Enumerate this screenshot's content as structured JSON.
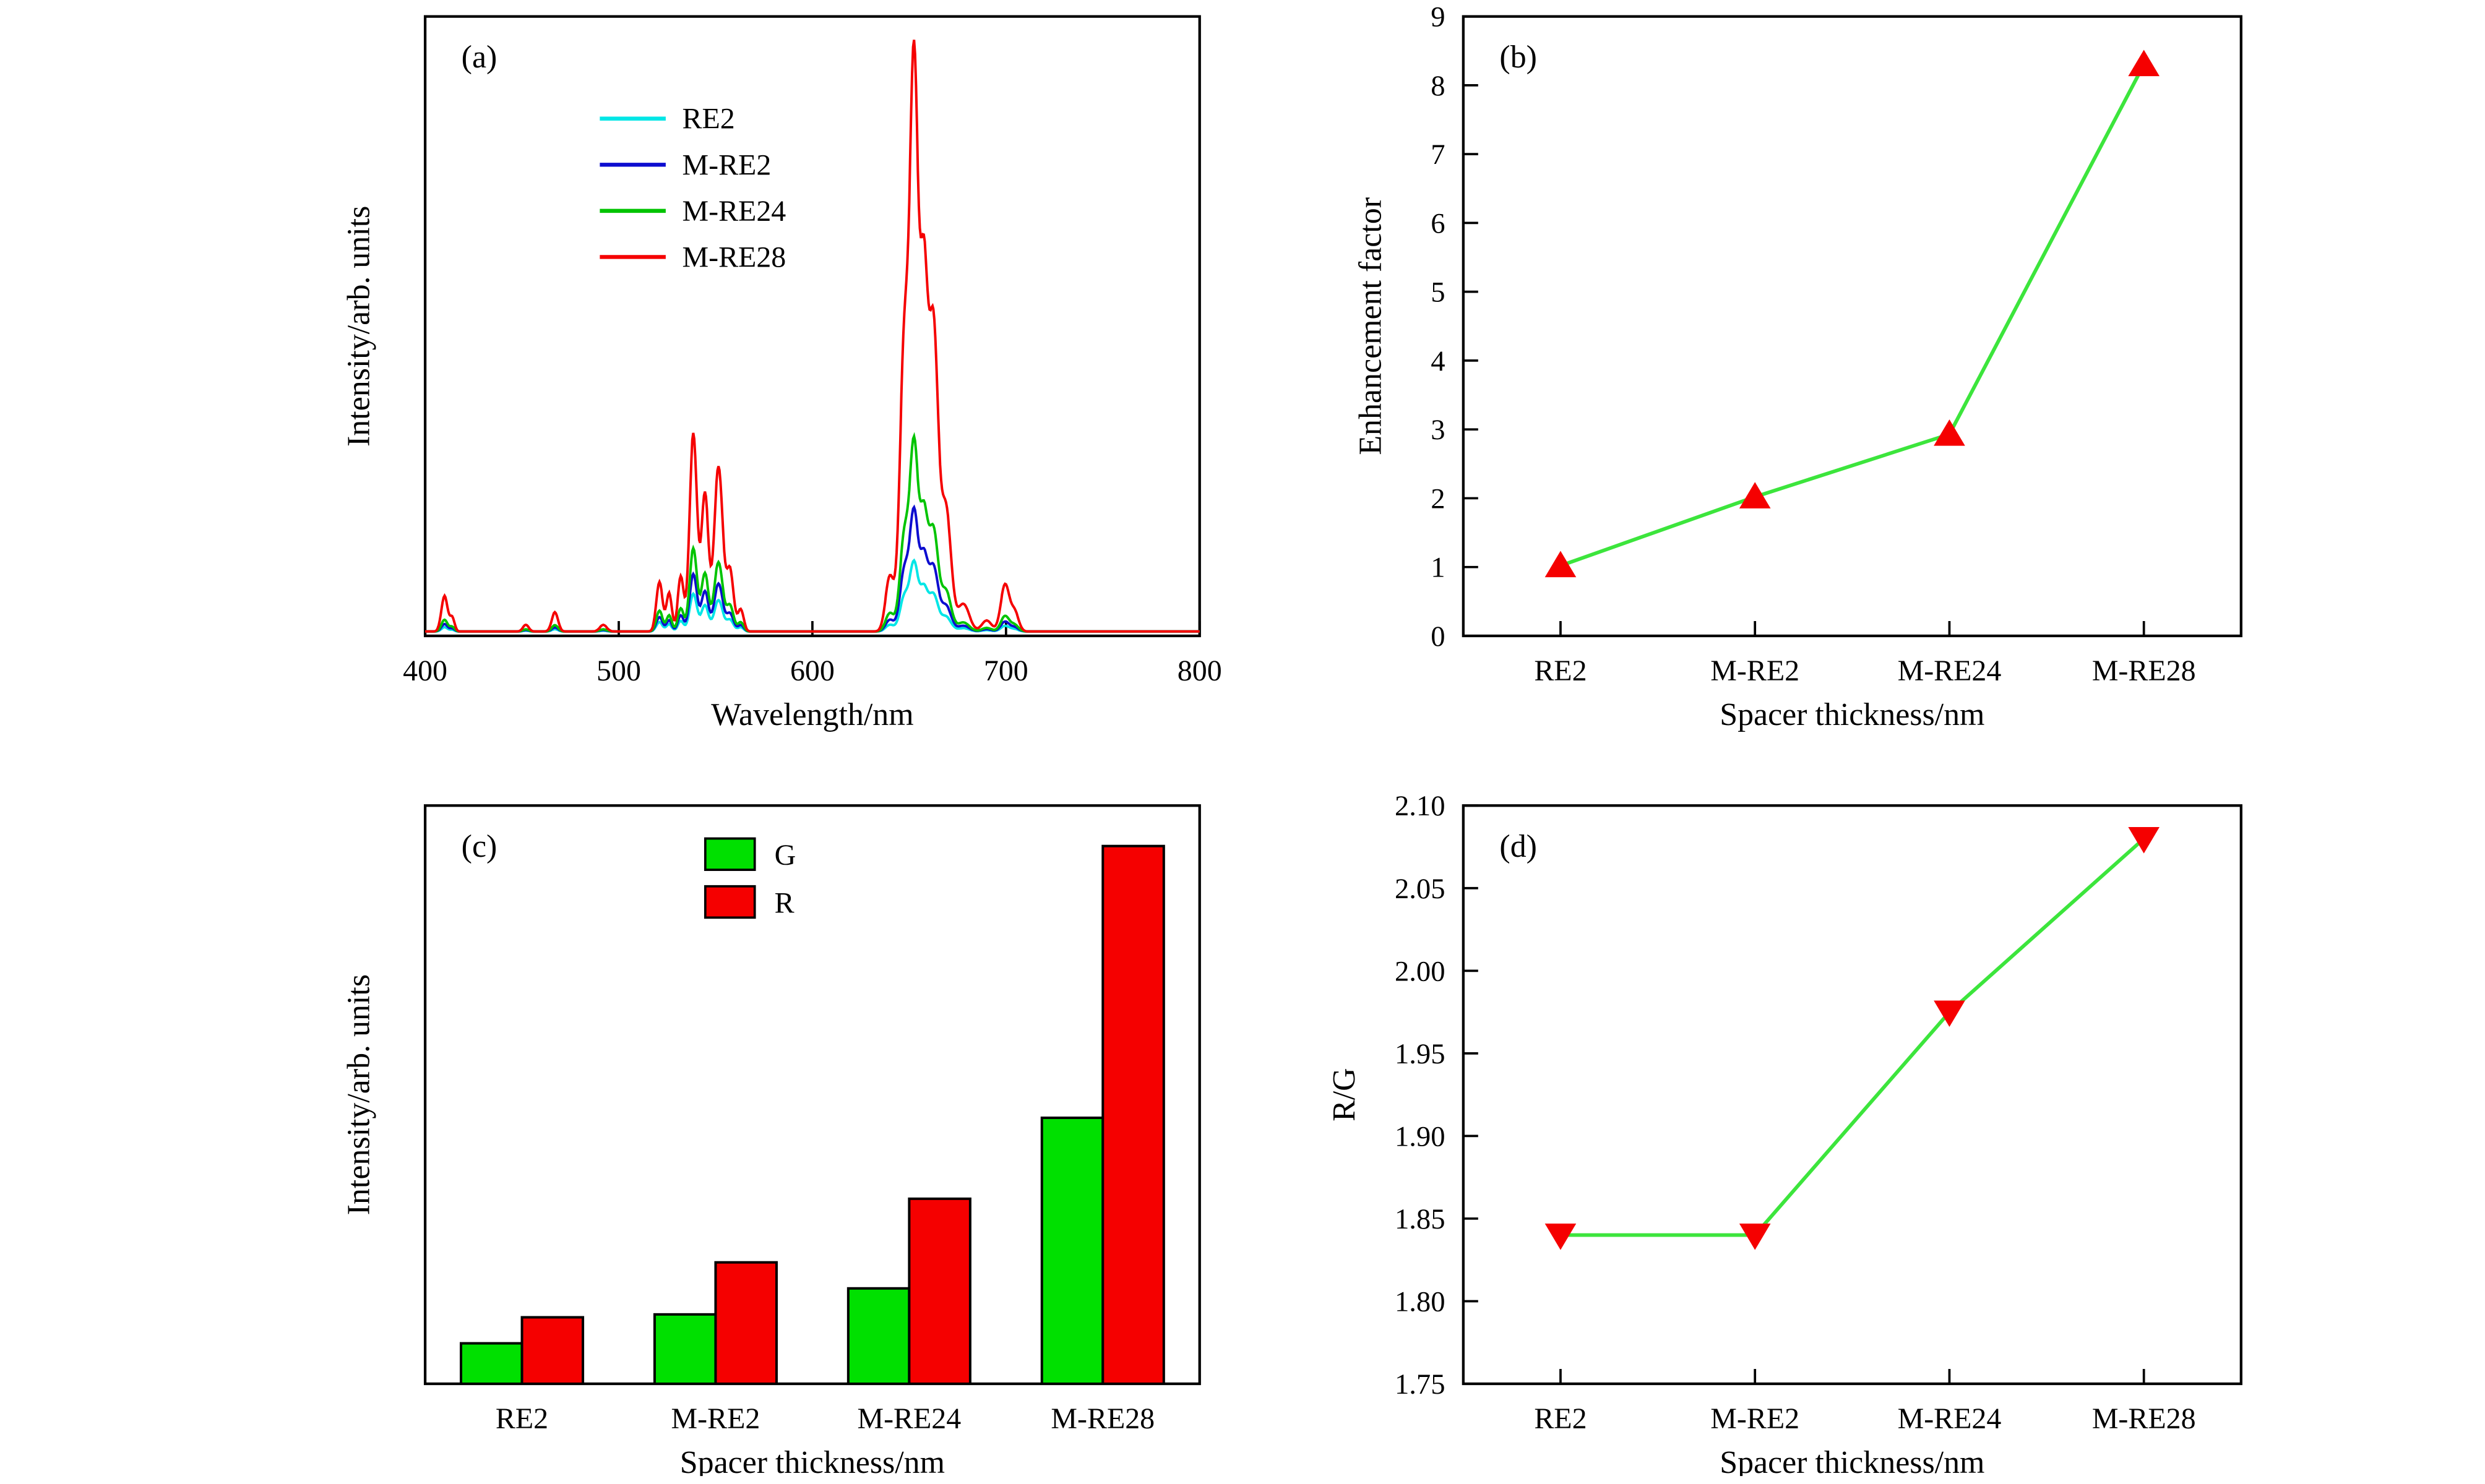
{
  "figure": {
    "background": "#ffffff",
    "description": "Four-panel luminescence figure"
  },
  "chart_data": [
    {
      "id": "a",
      "type": "line",
      "panel_label": "(a)",
      "xlabel": "Wavelength/nm",
      "ylabel": "Intensity/arb. units",
      "xlim": [
        400,
        800
      ],
      "xticks": [
        400,
        500,
        600,
        700,
        800
      ],
      "ylim": [
        0,
        1.12
      ],
      "baseline": 0.005,
      "legend_position": "upper-left-inside",
      "series": [
        {
          "name": "RE2",
          "color": "#00e6e6",
          "green_scale": 0.19,
          "red_scale": 0.12
        },
        {
          "name": "M-RE2",
          "color": "#0d0dcf",
          "green_scale": 0.29,
          "red_scale": 0.21
        },
        {
          "name": "M-RE24",
          "color": "#00c400",
          "green_scale": 0.42,
          "red_scale": 0.33
        },
        {
          "name": "M-RE28",
          "color": "#f50000",
          "green_scale": 1.0,
          "red_scale": 1.0
        }
      ],
      "peaks_green": [
        [
          521,
          1.6,
          0.09
        ],
        [
          526,
          1.4,
          0.07
        ],
        [
          532,
          1.5,
          0.1
        ],
        [
          538.5,
          1.9,
          0.36
        ],
        [
          544.5,
          1.8,
          0.25
        ],
        [
          551.5,
          2.2,
          0.3
        ],
        [
          557.5,
          1.8,
          0.11
        ],
        [
          563,
          1.5,
          0.04
        ]
      ],
      "peaks_red": [
        [
          410,
          1.6,
          0.065
        ],
        [
          414,
          1.2,
          0.025
        ],
        [
          452,
          1.5,
          0.012
        ],
        [
          467,
          1.6,
          0.035
        ],
        [
          492,
          1.8,
          0.012
        ],
        [
          640,
          2.2,
          0.1
        ],
        [
          647.5,
          2.3,
          0.52
        ],
        [
          652.5,
          2.1,
          1.0
        ],
        [
          657.5,
          2.0,
          0.6
        ],
        [
          662.5,
          2.4,
          0.55
        ],
        [
          669,
          2.6,
          0.22
        ],
        [
          678,
          3.0,
          0.05
        ],
        [
          690,
          2.5,
          0.02
        ],
        [
          699.5,
          2.2,
          0.085
        ],
        [
          704.5,
          2.0,
          0.035
        ]
      ]
    },
    {
      "id": "b",
      "type": "scatter",
      "panel_label": "(b)",
      "xlabel": "Spacer thickness/nm",
      "ylabel": "Enhancement factor",
      "categories": [
        "RE2",
        "M-RE2",
        "M-RE24",
        "M-RE28"
      ],
      "values": [
        1.02,
        2.02,
        2.93,
        8.3
      ],
      "ylim": [
        0,
        9
      ],
      "yticks": [
        0,
        1,
        2,
        3,
        4,
        5,
        6,
        7,
        8,
        9
      ],
      "ytick_decimals": 0,
      "marker": "triangle-up",
      "marker_color": "#f50000",
      "line_color": "#3ce53c"
    },
    {
      "id": "c",
      "type": "bar",
      "panel_label": "(c)",
      "xlabel": "Spacer thickness/nm",
      "ylabel": "Intensity/arb. units",
      "categories": [
        "RE2",
        "M-RE2",
        "M-RE24",
        "M-RE28"
      ],
      "series": [
        {
          "name": "G",
          "color": "#00e000",
          "values": [
            0.7,
            1.2,
            1.65,
            4.6
          ]
        },
        {
          "name": "R",
          "color": "#f50000",
          "values": [
            1.15,
            2.1,
            3.2,
            9.3
          ]
        }
      ],
      "ylim": [
        0,
        10
      ],
      "legend_position": "upper-center-inside"
    },
    {
      "id": "d",
      "type": "scatter",
      "panel_label": "(d)",
      "xlabel": "Spacer thickness/nm",
      "ylabel": "R/G",
      "categories": [
        "RE2",
        "M-RE2",
        "M-RE24",
        "M-RE28"
      ],
      "values": [
        1.84,
        1.84,
        1.975,
        2.08
      ],
      "ylim": [
        1.75,
        2.1
      ],
      "yticks": [
        1.75,
        1.8,
        1.85,
        1.9,
        1.95,
        2.0,
        2.05,
        2.1
      ],
      "ytick_decimals": 2,
      "marker": "triangle-down",
      "marker_color": "#f50000",
      "line_color": "#3ce53c"
    }
  ]
}
